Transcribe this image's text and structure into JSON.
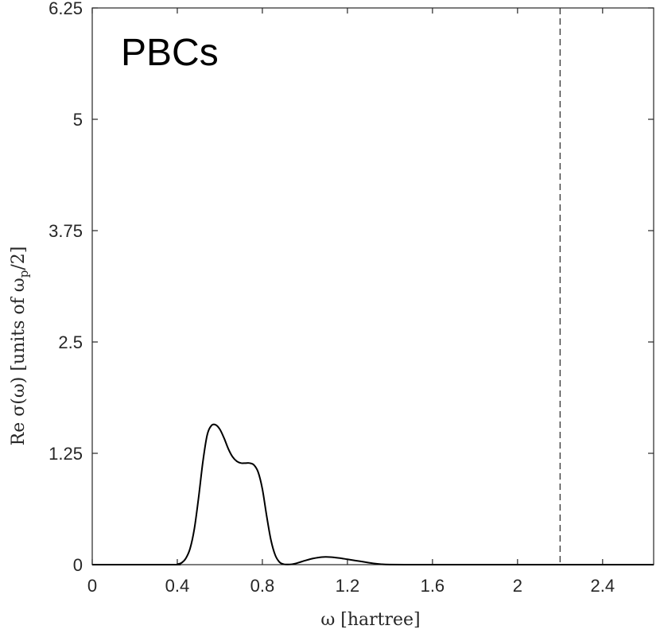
{
  "chart_data": {
    "type": "line",
    "annotation": "PBCs",
    "xlabel": "ω [hartree]",
    "ylabel": "Re σ(ω) [units of ωp/2]",
    "ylabel_parts": {
      "pre": "Re σ(ω) [units of ω",
      "sub": "p",
      "post": "/2]"
    },
    "xlim": [
      0,
      2.64
    ],
    "ylim": [
      0,
      6.25
    ],
    "xticks": [
      0,
      0.4,
      0.8,
      1.2,
      1.6,
      2,
      2.4
    ],
    "xtick_labels": [
      "0",
      "0.4",
      "0.8",
      "1.2",
      "1.6",
      "2",
      "2.4"
    ],
    "yticks": [
      0,
      1.25,
      2.5,
      3.75,
      5,
      6.25
    ],
    "ytick_labels": [
      "0",
      "1.25",
      "2.5",
      "3.75",
      "5",
      "6.25"
    ],
    "grid": false,
    "vline": {
      "x": 2.2,
      "style": "dashed"
    },
    "series": [
      {
        "color": "#000000",
        "x": [
          0,
          0.38,
          0.4,
          0.42,
          0.44,
          0.46,
          0.48,
          0.5,
          0.52,
          0.54,
          0.56,
          0.58,
          0.6,
          0.62,
          0.64,
          0.66,
          0.68,
          0.7,
          0.72,
          0.74,
          0.76,
          0.78,
          0.8,
          0.82,
          0.84,
          0.86,
          0.88,
          0.9,
          0.92,
          0.94,
          0.96,
          0.98,
          1.0,
          1.04,
          1.08,
          1.12,
          1.16,
          1.2,
          1.24,
          1.28,
          1.32,
          1.36,
          1.4,
          1.5,
          1.7,
          2.0,
          2.3,
          2.64
        ],
        "y": [
          0,
          0,
          0.005,
          0.02,
          0.07,
          0.18,
          0.4,
          0.75,
          1.15,
          1.45,
          1.56,
          1.57,
          1.52,
          1.42,
          1.3,
          1.21,
          1.16,
          1.14,
          1.14,
          1.14,
          1.12,
          1.04,
          0.85,
          0.55,
          0.28,
          0.11,
          0.03,
          0.005,
          0.002,
          0.005,
          0.015,
          0.03,
          0.045,
          0.07,
          0.085,
          0.085,
          0.075,
          0.06,
          0.045,
          0.03,
          0.015,
          0.005,
          0.001,
          0,
          0,
          0,
          0,
          0
        ]
      }
    ]
  }
}
